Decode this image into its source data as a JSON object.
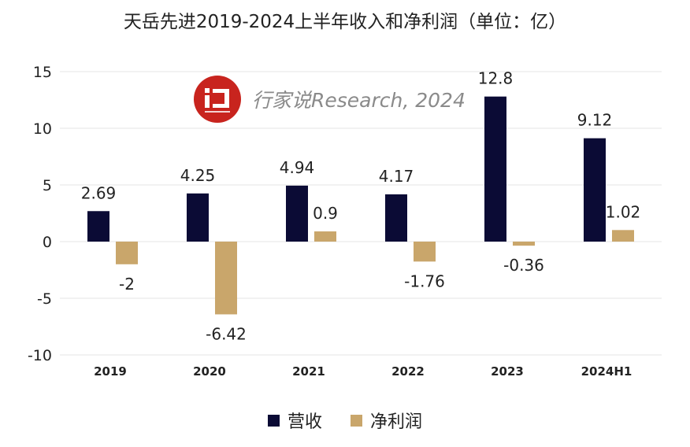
{
  "title": "天岳先进2019-2024上半年收入和净利润（单位：亿）",
  "watermark": {
    "text": "行家说Research, 2024",
    "logo_mark": "i",
    "logo_icon": "hangjiashuo-logo"
  },
  "colors": {
    "revenue": "#0b0b35",
    "net_profit": "#c9a66b",
    "grid": "#e6e6e6",
    "watermark_red": "#c8241e"
  },
  "chart_data": {
    "type": "bar",
    "categories": [
      "2019",
      "2020",
      "2021",
      "2022",
      "2023",
      "2024H1"
    ],
    "series": [
      {
        "name": "营收",
        "values": [
          2.69,
          4.25,
          4.94,
          4.17,
          12.8,
          9.12
        ],
        "labels": [
          "2.69",
          "4.25",
          "4.94",
          "4.17",
          "12.8",
          "9.12"
        ]
      },
      {
        "name": "净利润",
        "values": [
          -2,
          -6.42,
          0.9,
          -1.76,
          -0.36,
          1.02
        ],
        "labels": [
          "-2",
          "-6.42",
          "0.9",
          "-1.76",
          "-0.36",
          "1.02"
        ]
      }
    ],
    "ylim": [
      -10,
      15
    ],
    "yticks": [
      "15",
      "10",
      "5",
      "0",
      "-5",
      "-10"
    ],
    "grid": true,
    "legend": "bottom"
  }
}
